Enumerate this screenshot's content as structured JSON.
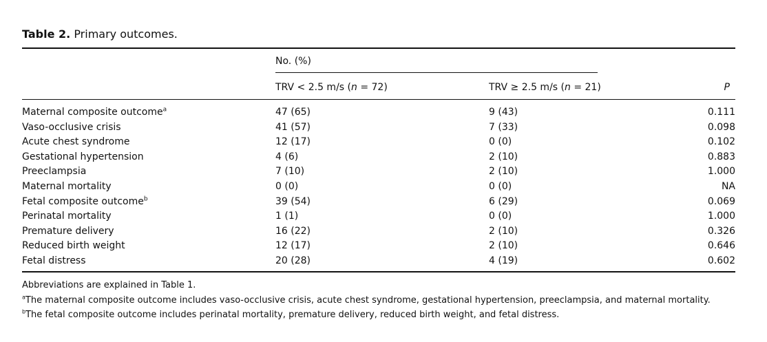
{
  "caption": {
    "label": "Table 2.",
    "title": "Primary outcomes."
  },
  "header": {
    "group": "No. (%)",
    "col_a_prefix": "TRV < 2.5 m/s (",
    "col_a_n": "n",
    "col_a_suffix": " = 72)",
    "col_b_prefix": "TRV ≥ 2.5 m/s (",
    "col_b_n": "n",
    "col_b_suffix": " = 21)",
    "col_p": "P"
  },
  "rows": [
    {
      "label": "Maternal composite outcome",
      "sup": "a",
      "a": "47 (65)",
      "b": "9 (43)",
      "p": "0.111"
    },
    {
      "label": "Vaso-occlusive crisis",
      "sup": "",
      "a": "41 (57)",
      "b": "7 (33)",
      "p": "0.098"
    },
    {
      "label": "Acute chest syndrome",
      "sup": "",
      "a": "12 (17)",
      "b": "0 (0)",
      "p": "0.102"
    },
    {
      "label": "Gestational hypertension",
      "sup": "",
      "a": "4 (6)",
      "b": "2 (10)",
      "p": "0.883"
    },
    {
      "label": "Preeclampsia",
      "sup": "",
      "a": "7 (10)",
      "b": "2 (10)",
      "p": "1.000"
    },
    {
      "label": "Maternal mortality",
      "sup": "",
      "a": "0 (0)",
      "b": "0 (0)",
      "p": "NA"
    },
    {
      "label": "Fetal composite outcome",
      "sup": "b",
      "a": "39 (54)",
      "b": "6 (29)",
      "p": "0.069"
    },
    {
      "label": "Perinatal mortality",
      "sup": "",
      "a": "1 (1)",
      "b": "0 (0)",
      "p": "1.000"
    },
    {
      "label": "Premature delivery",
      "sup": "",
      "a": "16 (22)",
      "b": "2 (10)",
      "p": "0.326"
    },
    {
      "label": "Reduced birth weight",
      "sup": "",
      "a": "12 (17)",
      "b": "2 (10)",
      "p": "0.646"
    },
    {
      "label": "Fetal distress",
      "sup": "",
      "a": "20 (28)",
      "b": "4 (19)",
      "p": "0.602"
    }
  ],
  "notes": {
    "abbrev": "Abbreviations are explained in Table 1.",
    "a_mark": "a",
    "a_text": "The maternal composite outcome includes vaso-occlusive crisis, acute chest syndrome, gestational hypertension, preeclampsia, and maternal mortality.",
    "b_mark": "b",
    "b_text": "The fetal composite outcome includes perinatal mortality, premature delivery, reduced birth weight, and fetal distress."
  }
}
